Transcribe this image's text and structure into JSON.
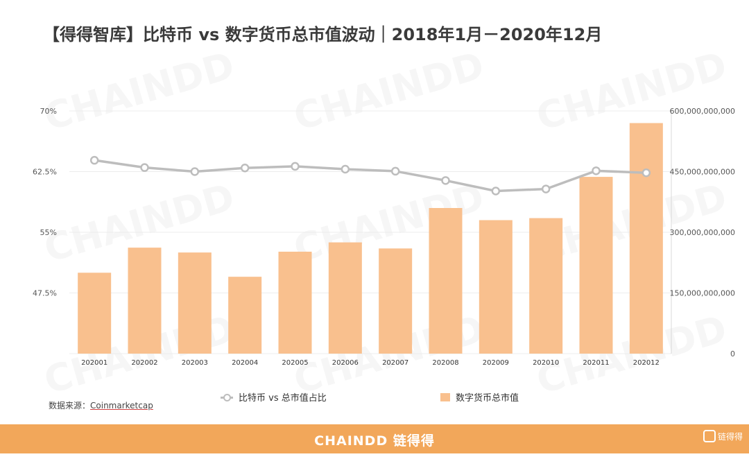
{
  "title": "【得得智库】比特币 vs 数字货币总市值波动｜2018年1月－2020年12月",
  "colors": {
    "bar": "#f9c08e",
    "line": "#bdbdbd",
    "footer": "#f2a75a"
  },
  "chart_data": {
    "type": "bar",
    "categories": [
      "202001",
      "202002",
      "202003",
      "202004",
      "202005",
      "202006",
      "202007",
      "202008",
      "202009",
      "202010",
      "202011",
      "202012"
    ],
    "series": [
      {
        "name": "比特币 vs 总市值占比",
        "type": "line",
        "axis": "left",
        "values": [
          63.9,
          63.0,
          62.5,
          62.95,
          63.15,
          62.8,
          62.55,
          61.4,
          60.1,
          60.35,
          62.6,
          62.35
        ]
      },
      {
        "name": "数字货币总市值",
        "type": "bar",
        "axis": "right",
        "values": [
          200000000000,
          262000000000,
          250000000000,
          190000000000,
          252000000000,
          275000000000,
          260000000000,
          360000000000,
          330000000000,
          335000000000,
          437000000000,
          570000000000
        ]
      }
    ],
    "y_left": {
      "ticks": [
        "70%",
        "62.5%",
        "55%",
        "47.5%"
      ]
    },
    "y_right": {
      "ylim": [
        0,
        600000000000
      ],
      "ticks": [
        "600,000,000,000",
        "450,000,000,000",
        "300,000,000,000",
        "150,000,000,000",
        "0"
      ]
    },
    "legend_position": "bottom",
    "grid": true
  },
  "source": {
    "label": "数据来源：",
    "name": "Coinmarketcap"
  },
  "watermark": "CHAINDD",
  "footer": {
    "brand": "CHAINDD 链得得",
    "logo_text": "链得得"
  }
}
